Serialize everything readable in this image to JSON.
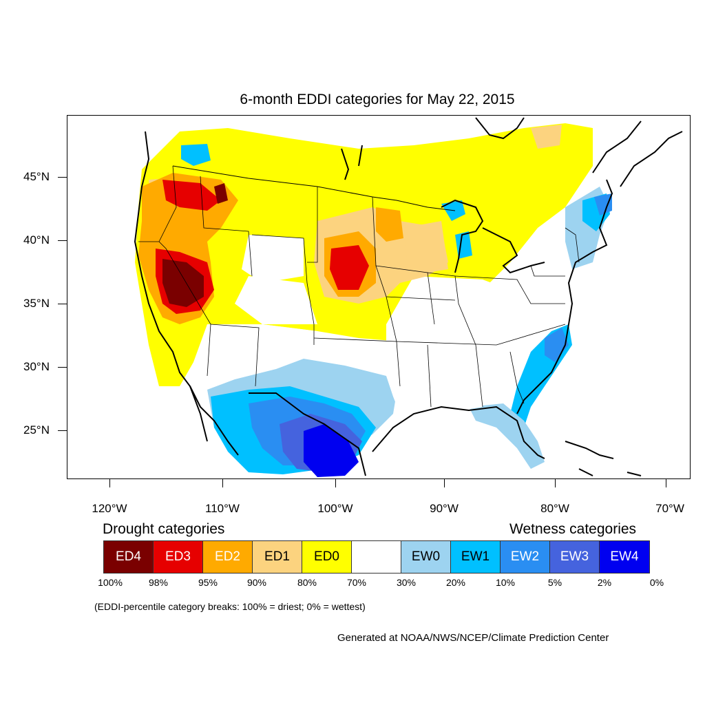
{
  "title": "6-month EDDI categories for May 22, 2015",
  "y_axis_labels": [
    "45°N",
    "40°N",
    "35°N",
    "30°N",
    "25°N"
  ],
  "x_axis_labels": [
    "120°W",
    "110°W",
    "100°W",
    "90°W",
    "80°W",
    "70°W"
  ],
  "legend": {
    "drought_title": "Drought categories",
    "wetness_title": "Wetness categories",
    "categories": [
      {
        "label": "ED4",
        "color": "#7a0000",
        "text_color": "#ffffff"
      },
      {
        "label": "ED3",
        "color": "#e60000",
        "text_color": "#ffffff"
      },
      {
        "label": "ED2",
        "color": "#ffaa00",
        "text_color": "#ffffff"
      },
      {
        "label": "ED1",
        "color": "#fcd37f",
        "text_color": "#000000"
      },
      {
        "label": "ED0",
        "color": "#ffff00",
        "text_color": "#000000"
      },
      {
        "label": "",
        "color": "#ffffff",
        "text_color": "#000000"
      },
      {
        "label": "EW0",
        "color": "#9dd3f0",
        "text_color": "#000000"
      },
      {
        "label": "EW1",
        "color": "#00c0ff",
        "text_color": "#000000"
      },
      {
        "label": "EW2",
        "color": "#2a8ef2",
        "text_color": "#ffffff"
      },
      {
        "label": "EW3",
        "color": "#4563de",
        "text_color": "#ffffff"
      },
      {
        "label": "EW4",
        "color": "#0000f0",
        "text_color": "#ffffff"
      }
    ],
    "breaks": [
      "100%",
      "98%",
      "95%",
      "90%",
      "80%",
      "70%",
      "30%",
      "20%",
      "10%",
      "5%",
      "2%",
      "0%"
    ]
  },
  "note": "(EDDI-percentile category breaks: 100% = driest; 0% = wettest)",
  "credit": "Generated at NOAA/NWS/NCEP/Climate Prediction Center"
}
